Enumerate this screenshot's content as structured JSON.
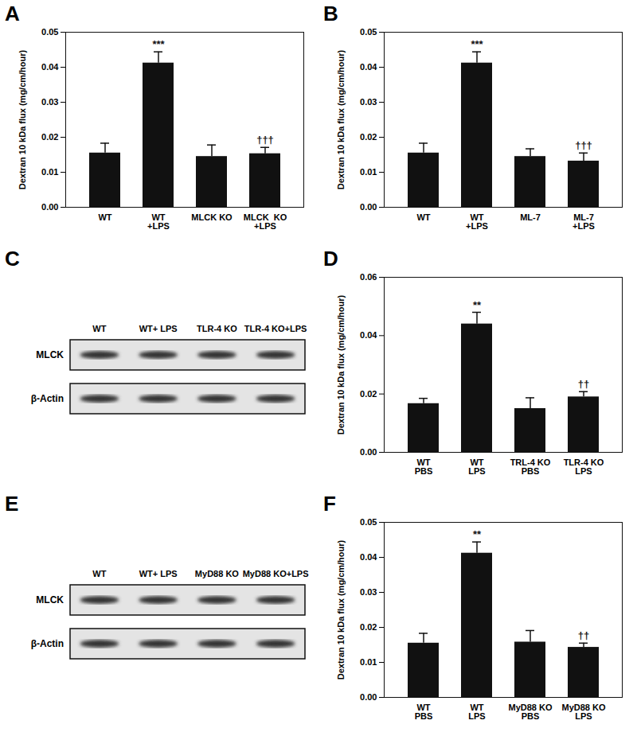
{
  "chart_data": [
    {
      "type": "bar",
      "title": "A",
      "ylabel": "Dextran 10 kDa flux (mg/cm/hour)",
      "color": "#111111",
      "categories": [
        "WT",
        "WT\n+LPS",
        "MLCK KO",
        "MLCK  KO\n+LPS"
      ],
      "values": [
        0.0155,
        0.0412,
        0.0145,
        0.0153
      ],
      "errors": [
        0.0028,
        0.0032,
        0.0033,
        0.0018
      ],
      "annotations": [
        null,
        "***",
        null,
        "†††"
      ],
      "ylim": [
        0,
        0.05
      ],
      "yticks": [
        {
          "value": 0,
          "label": "0.00"
        },
        {
          "value": 0.01,
          "label": "0.01"
        },
        {
          "value": 0.02,
          "label": "0.02"
        },
        {
          "value": 0.03,
          "label": "0.03"
        },
        {
          "value": 0.04,
          "label": "0.04"
        },
        {
          "value": 0.05,
          "label": "0.05"
        }
      ]
    },
    {
      "type": "bar",
      "title": "B",
      "ylabel": "Dextran 10 kDa flux (mg/cm/hour)",
      "color": "#111111",
      "categories": [
        "WT",
        "WT\n+LPS",
        "ML-7",
        "ML-7\n+LPS"
      ],
      "values": [
        0.0155,
        0.0412,
        0.0145,
        0.0132
      ],
      "errors": [
        0.0028,
        0.0032,
        0.0022,
        0.0023
      ],
      "annotations": [
        null,
        "***",
        null,
        "†††"
      ],
      "ylim": [
        0,
        0.05
      ],
      "yticks": [
        {
          "value": 0,
          "label": "0.00"
        },
        {
          "value": 0.01,
          "label": "0.01"
        },
        {
          "value": 0.02,
          "label": "0.02"
        },
        {
          "value": 0.03,
          "label": "0.03"
        },
        {
          "value": 0.04,
          "label": "0.04"
        },
        {
          "value": 0.05,
          "label": "0.05"
        }
      ]
    },
    {
      "type": "western_blot",
      "title": "C",
      "lanes": [
        "WT",
        "WT+ LPS",
        "TLR-4 KO",
        "TLR-4 KO+LPS"
      ],
      "rows": [
        "MLCK",
        "β-Actin"
      ]
    },
    {
      "type": "bar",
      "title": "D",
      "ylabel": "Dextran 10 kDa flux (mg/cm/hour)",
      "color": "#111111",
      "categories": [
        "WT\nPBS",
        "WT\nLPS",
        "TRL-4 KO\nPBS",
        "TLR-4 KO\nLPS"
      ],
      "values": [
        0.0167,
        0.044,
        0.015,
        0.019
      ],
      "errors": [
        0.0018,
        0.004,
        0.0037,
        0.0018
      ],
      "annotations": [
        null,
        "**",
        null,
        "††"
      ],
      "ylim": [
        0,
        0.06
      ],
      "yticks": [
        {
          "value": 0,
          "label": "0.00"
        },
        {
          "value": 0.02,
          "label": "0.02"
        },
        {
          "value": 0.04,
          "label": "0.04"
        },
        {
          "value": 0.06,
          "label": "0.06"
        }
      ]
    },
    {
      "type": "western_blot",
      "title": "E",
      "lanes": [
        "WT",
        "WT+ LPS",
        "MyD88 KO",
        "MyD88 KO+LPS"
      ],
      "rows": [
        "MLCK",
        "β-Actin"
      ]
    },
    {
      "type": "bar",
      "title": "F",
      "ylabel": "Dextran 10 kDa flux (mg/cm/hour)",
      "color": "#111111",
      "categories": [
        "WT\nPBS",
        "WT\nLPS",
        "MyD88 KO\nPBS",
        "MyD88 KO\nLPS"
      ],
      "values": [
        0.0155,
        0.0412,
        0.0158,
        0.0143
      ],
      "errors": [
        0.0028,
        0.0032,
        0.0033,
        0.0012
      ],
      "annotations": [
        null,
        "**",
        null,
        "††"
      ],
      "ylim": [
        0,
        0.05
      ],
      "yticks": [
        {
          "value": 0,
          "label": "0.00"
        },
        {
          "value": 0.01,
          "label": "0.01"
        },
        {
          "value": 0.02,
          "label": "0.02"
        },
        {
          "value": 0.03,
          "label": "0.03"
        },
        {
          "value": 0.04,
          "label": "0.04"
        },
        {
          "value": 0.05,
          "label": "0.05"
        }
      ]
    }
  ]
}
